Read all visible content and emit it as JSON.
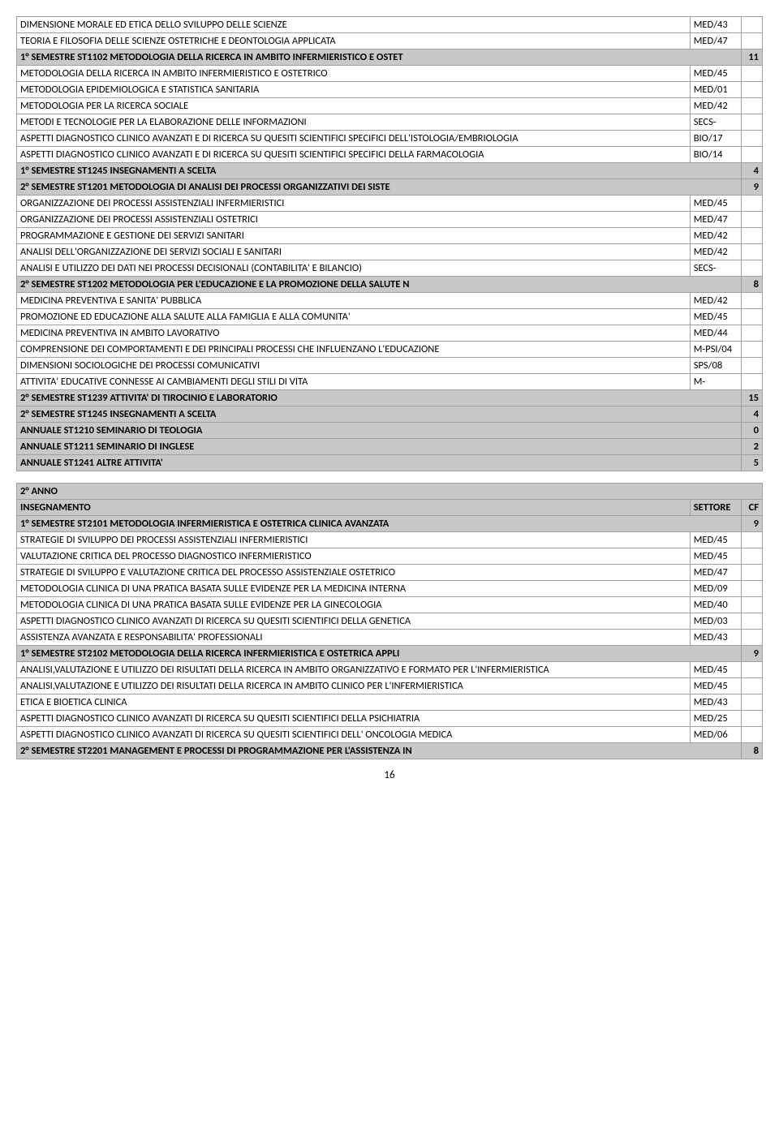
{
  "table1": {
    "rows": [
      {
        "t": "DIMENSIONE MORALE ED ETICA DELLO SVILUPPO DELLE SCIENZE",
        "s": "MED/43",
        "c": "",
        "hdr": false
      },
      {
        "t": "TEORIA E FILOSOFIA DELLE SCIENZE OSTETRICHE E DEONTOLOGIA APPLICATA",
        "s": "MED/47",
        "c": "",
        "hdr": false
      },
      {
        "t": "1° SEMESTRE ST1102 METODOLOGIA DELLA RICERCA IN AMBITO INFERMIERISTICO E OSTET",
        "s": "",
        "c": "11",
        "hdr": true,
        "span": 2
      },
      {
        "t": "METODOLOGIA DELLA RICERCA IN AMBITO INFERMIERISTICO E OSTETRICO",
        "s": "MED/45",
        "c": "",
        "hdr": false
      },
      {
        "t": "METODOLOGIA EPIDEMIOLOGICA E STATISTICA SANITARIA",
        "s": "MED/01",
        "c": "",
        "hdr": false
      },
      {
        "t": "METODOLOGIA PER LA RICERCA SOCIALE",
        "s": "MED/42",
        "c": "",
        "hdr": false
      },
      {
        "t": "METODI E TECNOLOGIE PER LA ELABORAZIONE DELLE INFORMAZIONI",
        "s": "SECS-",
        "c": "",
        "hdr": false
      },
      {
        "t": "ASPETTI DIAGNOSTICO CLINICO AVANZATI E DI RICERCA SU QUESITI SCIENTIFICI SPECIFICI DELL'ISTOLOGIA/EMBRIOLOGIA",
        "s": "BIO/17",
        "c": "",
        "hdr": false
      },
      {
        "t": "ASPETTI DIAGNOSTICO CLINICO AVANZATI E DI RICERCA SU QUESITI SCIENTIFICI SPECIFICI DELLA FARMACOLOGIA",
        "s": "BIO/14",
        "c": "",
        "hdr": false
      },
      {
        "t": "1° SEMESTRE ST1245 INSEGNAMENTI A SCELTA",
        "s": "",
        "c": "4",
        "hdr": true,
        "span": 2
      },
      {
        "t": "2° SEMESTRE ST1201 METODOLOGIA DI ANALISI DEI PROCESSI ORGANIZZATIVI DEI SISTE",
        "s": "",
        "c": "9",
        "hdr": true,
        "span": 2
      },
      {
        "t": "ORGANIZZAZIONE DEI PROCESSI ASSISTENZIALI INFERMIERISTICI",
        "s": "MED/45",
        "c": "",
        "hdr": false
      },
      {
        "t": "ORGANIZZAZIONE DEI PROCESSI ASSISTENZIALI OSTETRICI",
        "s": "MED/47",
        "c": "",
        "hdr": false
      },
      {
        "t": "PROGRAMMAZIONE E GESTIONE DEI SERVIZI SANITARI",
        "s": "MED/42",
        "c": "",
        "hdr": false
      },
      {
        "t": "ANALISI DELL'ORGANIZZAZIONE DEI SERVIZI SOCIALI E SANITARI",
        "s": "MED/42",
        "c": "",
        "hdr": false
      },
      {
        "t": "ANALISI E UTILIZZO DEI DATI NEI PROCESSI DECISIONALI (CONTABILITA' E BILANCIO)",
        "s": "SECS-",
        "c": "",
        "hdr": false
      },
      {
        "t": "2° SEMESTRE ST1202 METODOLOGIA PER L'EDUCAZIONE E LA PROMOZIONE DELLA SALUTE N",
        "s": "",
        "c": "8",
        "hdr": true,
        "span": 2
      },
      {
        "t": "MEDICINA PREVENTIVA E SANITA' PUBBLICA",
        "s": "MED/42",
        "c": "",
        "hdr": false
      },
      {
        "t": "PROMOZIONE ED EDUCAZIONE ALLA SALUTE ALLA FAMIGLIA E ALLA COMUNITA'",
        "s": "MED/45",
        "c": "",
        "hdr": false
      },
      {
        "t": "MEDICINA PREVENTIVA IN AMBITO LAVORATIVO",
        "s": "MED/44",
        "c": "",
        "hdr": false
      },
      {
        "t": "COMPRENSIONE DEI COMPORTAMENTI E DEI PRINCIPALI PROCESSI CHE INFLUENZANO L'EDUCAZIONE",
        "s": "M-PSI/04",
        "c": "",
        "hdr": false
      },
      {
        "t": "DIMENSIONI SOCIOLOGICHE DEI PROCESSI COMUNICATIVI",
        "s": "SPS/08",
        "c": "",
        "hdr": false
      },
      {
        "t": "ATTIVITA' EDUCATIVE CONNESSE AI CAMBIAMENTI DEGLI STILI DI VITA",
        "s": "M-",
        "c": "",
        "hdr": false
      },
      {
        "t": "2° SEMESTRE ST1239 ATTIVITA' DI TIROCINIO E LABORATORIO",
        "s": "",
        "c": "15",
        "hdr": true,
        "span": 2
      },
      {
        "t": "2° SEMESTRE ST1245 INSEGNAMENTI A SCELTA",
        "s": "",
        "c": "4",
        "hdr": true,
        "span": 2
      },
      {
        "t": "ANNUALE ST1210 SEMINARIO DI TEOLOGIA",
        "s": "",
        "c": "0",
        "hdr": true,
        "span": 2
      },
      {
        "t": "ANNUALE ST1211 SEMINARIO DI INGLESE",
        "s": "",
        "c": "2",
        "hdr": true,
        "span": 2
      },
      {
        "t": "ANNUALE ST1241 ALTRE ATTIVITA'",
        "s": "",
        "c": "5",
        "hdr": true,
        "span": 2
      }
    ]
  },
  "table2": {
    "headerYear": "2° ANNO",
    "headInsegnamento": "INSEGNAMENTO",
    "headSettore": "SETTORE",
    "headCF": "CF",
    "rows": [
      {
        "t": "1° SEMESTRE ST2101 METODOLOGIA INFERMIERISTICA E OSTETRICA CLINICA AVANZATA",
        "s": "",
        "c": "9",
        "hdr": true,
        "span": 2
      },
      {
        "t": "STRATEGIE DI SVILUPPO DEI PROCESSI ASSISTENZIALI INFERMIERISTICI",
        "s": "MED/45",
        "c": "",
        "hdr": false
      },
      {
        "t": "VALUTAZIONE CRITICA DEL PROCESSO DIAGNOSTICO INFERMIERISTICO",
        "s": "MED/45",
        "c": "",
        "hdr": false
      },
      {
        "t": "STRATEGIE DI SVILUPPO E VALUTAZIONE CRITICA DEL PROCESSO ASSISTENZIALE OSTETRICO",
        "s": "MED/47",
        "c": "",
        "hdr": false
      },
      {
        "t": "METODOLOGIA CLINICA DI UNA PRATICA BASATA SULLE EVIDENZE PER LA MEDICINA INTERNA",
        "s": "MED/09",
        "c": "",
        "hdr": false
      },
      {
        "t": "METODOLOGIA CLINICA DI UNA PRATICA BASATA SULLE EVIDENZE PER LA GINECOLOGIA",
        "s": "MED/40",
        "c": "",
        "hdr": false
      },
      {
        "t": "ASPETTI DIAGNOSTICO CLINICO AVANZATI DI RICERCA SU QUESITI SCIENTIFICI DELLA GENETICA",
        "s": "MED/03",
        "c": "",
        "hdr": false
      },
      {
        "t": "ASSISTENZA AVANZATA E RESPONSABILITA' PROFESSIONALI",
        "s": "MED/43",
        "c": "",
        "hdr": false
      },
      {
        "t": "1° SEMESTRE ST2102 METODOLOGIA DELLA RICERCA INFERMIERISTICA E OSTETRICA APPLI",
        "s": "",
        "c": "9",
        "hdr": true,
        "span": 2
      },
      {
        "t": "ANALISI,VALUTAZIONE E UTILIZZO DEI RISULTATI DELLA RICERCA IN AMBITO ORGANIZZATIVO E FORMATO PER L'INFERMIERISTICA",
        "s": "MED/45",
        "c": "",
        "hdr": false
      },
      {
        "t": "ANALISI,VALUTAZIONE E UTILIZZO DEI RISULTATI DELLA RICERCA IN AMBITO CLINICO PER L'INFERMIERISTICA",
        "s": "MED/45",
        "c": "",
        "hdr": false
      },
      {
        "t": "ETICA E BIOETICA CLINICA",
        "s": "MED/43",
        "c": "",
        "hdr": false
      },
      {
        "t": "ASPETTI DIAGNOSTICO CLINICO AVANZATI DI RICERCA SU QUESITI SCIENTIFICI DELLA PSICHIATRIA",
        "s": "MED/25",
        "c": "",
        "hdr": false
      },
      {
        "t": "ASPETTI DIAGNOSTICO CLINICO AVANZATI DI RICERCA SU QUESITI SCIENTIFICI DELL' ONCOLOGIA MEDICA",
        "s": "MED/06",
        "c": "",
        "hdr": false
      },
      {
        "t": "2° SEMESTRE ST2201 MANAGEMENT E PROCESSI DI PROGRAMMAZIONE PER L'ASSISTENZA IN",
        "s": "",
        "c": "8",
        "hdr": true,
        "span": 2
      }
    ]
  },
  "pagenum": "16"
}
